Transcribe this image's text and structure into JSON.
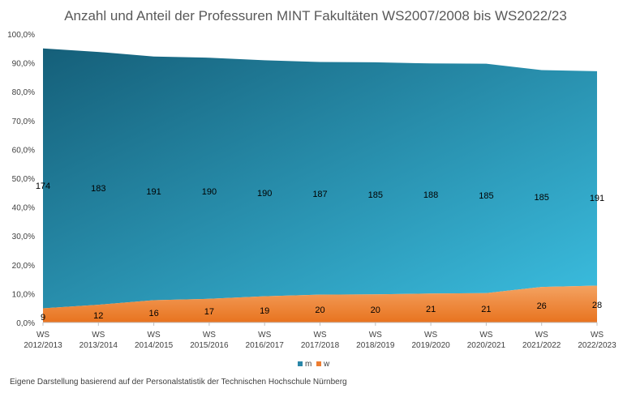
{
  "chart_data": {
    "type": "area",
    "stacked": "percent",
    "title": "Anzahl und Anteil der Professuren MINT Fakultäten WS2007/2008 bis WS2022/23",
    "categories": [
      [
        "WS",
        "2012/2013"
      ],
      [
        "WS",
        "2013/2014"
      ],
      [
        "WS",
        "2014/2015"
      ],
      [
        "WS",
        "2015/2016"
      ],
      [
        "WS",
        "2016/2017"
      ],
      [
        "WS",
        "2017/2018"
      ],
      [
        "WS",
        "2018/2019"
      ],
      [
        "WS",
        "2019/2020"
      ],
      [
        "WS",
        "2020/2021"
      ],
      [
        "WS",
        "2021/2022"
      ],
      [
        "WS",
        "2022/2023"
      ]
    ],
    "series": [
      {
        "name": "m",
        "color": "#1f6f8b",
        "values": [
          174,
          183,
          191,
          190,
          190,
          187,
          185,
          188,
          185,
          185,
          191
        ]
      },
      {
        "name": "w",
        "color": "#ed7d31",
        "values": [
          9,
          12,
          16,
          17,
          19,
          20,
          20,
          21,
          21,
          26,
          28
        ]
      }
    ],
    "yticks": [
      "0,0%",
      "10,0%",
      "20,0%",
      "30,0%",
      "40,0%",
      "50,0%",
      "60,0%",
      "70,0%",
      "80,0%",
      "90,0%",
      "100,0%"
    ],
    "ylim": [
      0,
      100
    ],
    "legend_position": "bottom",
    "gradient_colors": [
      "#155f79",
      "#3bbee0"
    ]
  },
  "footer": {
    "source": "Eigene Darstellung basierend auf der Personalstatistik der Technischen Hochschule Nürnberg"
  }
}
